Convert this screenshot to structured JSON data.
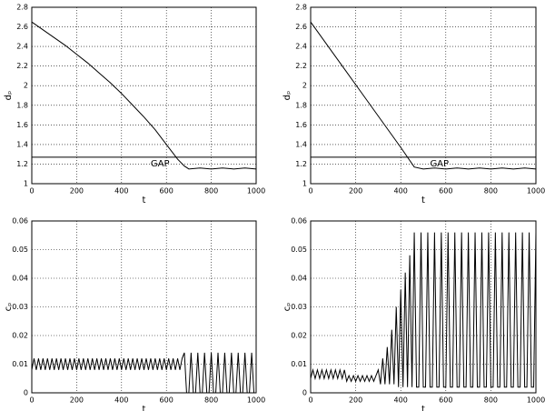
{
  "chart_data": [
    {
      "type": "line",
      "xlabel": "t",
      "ylabel": "dₚ",
      "xlim": [
        0,
        1000
      ],
      "ylim": [
        1,
        2.8
      ],
      "xticks": [
        0,
        200,
        400,
        600,
        800,
        1000
      ],
      "yticks": [
        1,
        1.2,
        1.4,
        1.6,
        1.8,
        2,
        2.2,
        2.4,
        2.6,
        2.8
      ],
      "grid": true,
      "annotations": [
        {
          "text": "GAP",
          "y": 1.27
        }
      ],
      "x": [
        0,
        50,
        100,
        150,
        200,
        250,
        300,
        350,
        400,
        450,
        500,
        550,
        600,
        650,
        680,
        700,
        750,
        800,
        850,
        900,
        950,
        1000
      ],
      "series": [
        {
          "color": "#000000",
          "values": [
            2.65,
            2.57,
            2.49,
            2.41,
            2.32,
            2.23,
            2.13,
            2.03,
            1.92,
            1.8,
            1.68,
            1.55,
            1.4,
            1.25,
            1.18,
            1.15,
            1.16,
            1.15,
            1.16,
            1.15,
            1.16,
            1.15
          ]
        }
      ]
    },
    {
      "type": "line",
      "xlabel": "t",
      "ylabel": "dₚ",
      "xlim": [
        0,
        1000
      ],
      "ylim": [
        1,
        2.8
      ],
      "xticks": [
        0,
        200,
        400,
        600,
        800,
        1000
      ],
      "yticks": [
        1,
        1.2,
        1.4,
        1.6,
        1.8,
        2,
        2.2,
        2.4,
        2.6,
        2.8
      ],
      "grid": true,
      "annotations": [
        {
          "text": "GAP",
          "y": 1.27
        }
      ],
      "x": [
        0,
        100,
        200,
        300,
        400,
        460,
        500,
        550,
        600,
        650,
        700,
        750,
        800,
        850,
        900,
        950,
        1000
      ],
      "series": [
        {
          "color": "#000000",
          "values": [
            2.65,
            2.33,
            2.01,
            1.69,
            1.37,
            1.17,
            1.15,
            1.16,
            1.15,
            1.16,
            1.15,
            1.16,
            1.15,
            1.16,
            1.15,
            1.16,
            1.15
          ]
        }
      ]
    },
    {
      "type": "line",
      "xlabel": "t",
      "ylabel": "cₚ",
      "xlim": [
        0,
        1000
      ],
      "ylim": [
        0,
        0.06
      ],
      "xticks": [
        0,
        200,
        400,
        600,
        800,
        1000
      ],
      "yticks": [
        0,
        0.01,
        0.02,
        0.03,
        0.04,
        0.05,
        0.06
      ],
      "grid": true,
      "x": [
        0,
        10,
        20,
        30,
        40,
        50,
        60,
        70,
        80,
        90,
        100,
        110,
        120,
        130,
        140,
        150,
        160,
        170,
        180,
        190,
        200,
        210,
        220,
        230,
        240,
        250,
        260,
        270,
        280,
        290,
        300,
        310,
        320,
        330,
        340,
        350,
        360,
        370,
        380,
        390,
        400,
        410,
        420,
        430,
        440,
        450,
        460,
        470,
        480,
        490,
        500,
        510,
        520,
        530,
        540,
        550,
        560,
        570,
        580,
        590,
        600,
        610,
        620,
        630,
        640,
        650,
        660,
        670,
        680,
        690,
        700,
        710,
        720,
        730,
        740,
        750,
        760,
        770,
        780,
        790,
        800,
        810,
        820,
        830,
        840,
        850,
        860,
        870,
        880,
        890,
        900,
        910,
        920,
        930,
        940,
        950,
        960,
        970,
        980,
        990,
        1000
      ],
      "series": [
        {
          "color": "#000000",
          "values": [
            0.008,
            0.012,
            0.008,
            0.012,
            0.008,
            0.012,
            0.008,
            0.012,
            0.008,
            0.012,
            0.008,
            0.012,
            0.008,
            0.012,
            0.008,
            0.012,
            0.008,
            0.012,
            0.008,
            0.012,
            0.008,
            0.012,
            0.008,
            0.012,
            0.008,
            0.012,
            0.008,
            0.012,
            0.008,
            0.012,
            0.008,
            0.012,
            0.008,
            0.012,
            0.008,
            0.012,
            0.008,
            0.012,
            0.008,
            0.012,
            0.008,
            0.012,
            0.008,
            0.012,
            0.008,
            0.012,
            0.008,
            0.012,
            0.008,
            0.012,
            0.008,
            0.012,
            0.008,
            0.012,
            0.008,
            0.012,
            0.008,
            0.012,
            0.008,
            0.012,
            0.008,
            0.012,
            0.008,
            0.012,
            0.008,
            0.012,
            0.008,
            0.012,
            0.014,
            0,
            0,
            0.014,
            0,
            0,
            0.014,
            0,
            0,
            0.014,
            0,
            0,
            0.014,
            0,
            0,
            0.014,
            0,
            0,
            0.014,
            0,
            0,
            0.014,
            0,
            0,
            0.014,
            0,
            0,
            0.014,
            0,
            0,
            0.014,
            0,
            0
          ]
        }
      ]
    },
    {
      "type": "line",
      "xlabel": "t",
      "ylabel": "cₚ",
      "xlim": [
        0,
        1000
      ],
      "ylim": [
        0,
        0.06
      ],
      "xticks": [
        0,
        200,
        400,
        600,
        800,
        1000
      ],
      "yticks": [
        0,
        0.01,
        0.02,
        0.03,
        0.04,
        0.05,
        0.06
      ],
      "grid": true,
      "x": [
        0,
        10,
        20,
        30,
        40,
        50,
        60,
        70,
        80,
        90,
        100,
        110,
        120,
        130,
        140,
        150,
        160,
        170,
        180,
        190,
        200,
        210,
        220,
        230,
        240,
        250,
        260,
        270,
        280,
        290,
        300,
        310,
        320,
        330,
        340,
        350,
        360,
        370,
        380,
        390,
        400,
        410,
        420,
        430,
        440,
        450,
        460,
        470,
        480,
        490,
        500,
        510,
        520,
        530,
        540,
        550,
        560,
        570,
        580,
        590,
        600,
        610,
        620,
        630,
        640,
        650,
        660,
        670,
        680,
        690,
        700,
        710,
        720,
        730,
        740,
        750,
        760,
        770,
        780,
        790,
        800,
        810,
        820,
        830,
        840,
        850,
        860,
        870,
        880,
        890,
        900,
        910,
        920,
        930,
        940,
        950,
        960,
        970,
        980,
        990,
        1000
      ],
      "series": [
        {
          "color": "#000000",
          "values": [
            0.005,
            0.008,
            0.005,
            0.008,
            0.005,
            0.008,
            0.005,
            0.008,
            0.005,
            0.008,
            0.005,
            0.008,
            0.005,
            0.008,
            0.005,
            0.008,
            0.004,
            0.006,
            0.004,
            0.006,
            0.004,
            0.006,
            0.004,
            0.006,
            0.004,
            0.006,
            0.004,
            0.006,
            0.004,
            0.006,
            0.008,
            0.003,
            0.012,
            0.003,
            0.016,
            0.003,
            0.022,
            0.003,
            0.03,
            0.002,
            0.036,
            0.002,
            0.042,
            0.002,
            0.048,
            0.002,
            0.056,
            0.002,
            0.002,
            0.056,
            0.002,
            0.002,
            0.056,
            0.002,
            0.002,
            0.056,
            0.002,
            0.002,
            0.056,
            0.002,
            0.002,
            0.056,
            0.002,
            0.002,
            0.056,
            0.002,
            0.002,
            0.056,
            0.002,
            0.002,
            0.056,
            0.002,
            0.002,
            0.056,
            0.002,
            0.002,
            0.056,
            0.002,
            0.002,
            0.056,
            0.002,
            0.002,
            0.056,
            0.002,
            0.002,
            0.056,
            0.002,
            0.002,
            0.056,
            0.002,
            0.002,
            0.056,
            0.002,
            0.002,
            0.056,
            0.002,
            0.002,
            0.056,
            0.002,
            0.002,
            0.056
          ]
        }
      ]
    }
  ]
}
